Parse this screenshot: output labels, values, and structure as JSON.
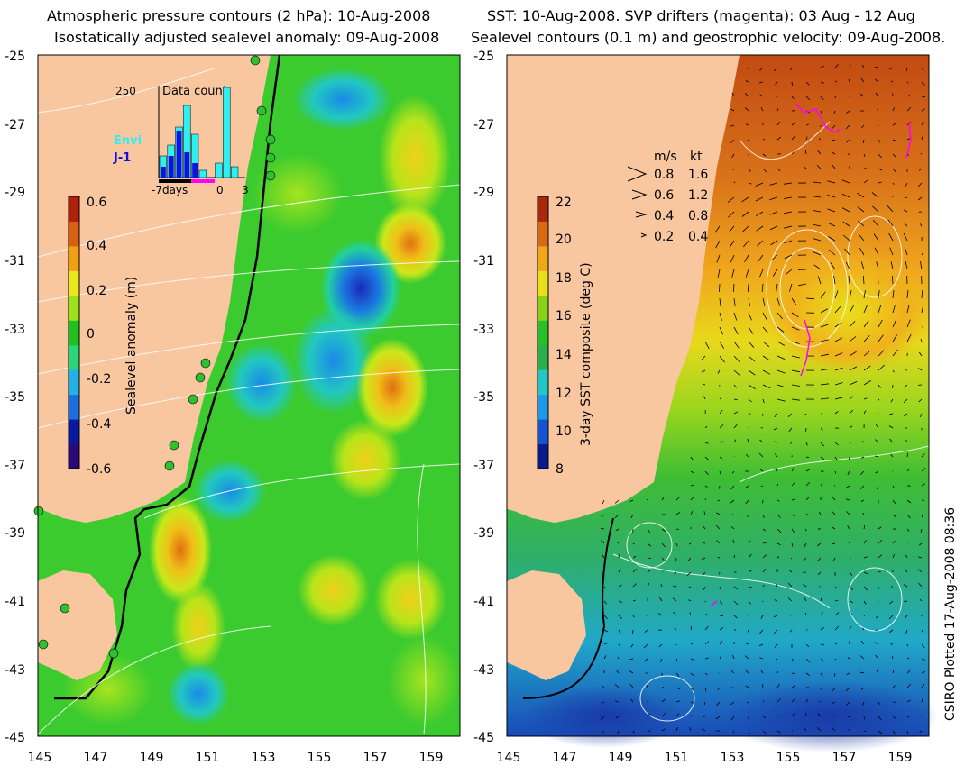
{
  "left_panel": {
    "title_line1": "Atmospheric pressure contours (2 hPa): 10-Aug-2008",
    "title_line2": "Isostatically adjusted sealevel anomaly: 09-Aug-2008",
    "y_ticks": [
      "-25",
      "-27",
      "-29",
      "-31",
      "-33",
      "-35",
      "-37",
      "-39",
      "-41",
      "-43",
      "-45"
    ],
    "x_ticks": [
      "145",
      "147",
      "149",
      "151",
      "153",
      "155",
      "157",
      "159"
    ],
    "colorbar": {
      "label": "Sealevel anomaly (m)",
      "ticks": [
        "0.6",
        "0.4",
        "0.2",
        "0",
        "-0.2",
        "-0.4",
        "-0.6"
      ],
      "colors": [
        "#2a0a7a",
        "#0a1aa0",
        "#1a6ee0",
        "#22b0e8",
        "#2ad67a",
        "#1ec21e",
        "#9be21a",
        "#e8e81a",
        "#f0a010",
        "#d86010",
        "#b0200a"
      ]
    },
    "inset": {
      "title": "Data count",
      "ymax_label": "250",
      "legend_envi": "Envi",
      "legend_j1": "J-1",
      "x_labels": [
        "-7days",
        "0",
        "3"
      ],
      "envi_color": "#2ef0f0",
      "j1_color": "#1010e0",
      "bars": [
        {
          "day": -7,
          "envi": 60,
          "j1": 30
        },
        {
          "day": -6,
          "envi": 90,
          "j1": 60
        },
        {
          "day": -5,
          "envi": 140,
          "j1": 130
        },
        {
          "day": -4,
          "envi": 200,
          "j1": 70
        },
        {
          "day": -3,
          "envi": 120,
          "j1": 40
        },
        {
          "day": -2,
          "envi": 20,
          "j1": 0
        },
        {
          "day": 0,
          "envi": 40,
          "j1": 0
        },
        {
          "day": 1,
          "envi": 250,
          "j1": 0
        },
        {
          "day": 2,
          "envi": 30,
          "j1": 0
        }
      ]
    }
  },
  "right_panel": {
    "title_line1": "SST: 10-Aug-2008. SVP drifters (magenta): 03 Aug - 12 Aug",
    "title_line2": "Sealevel contours (0.1 m) and geostrophic velocity: 09-Aug-2008.",
    "y_ticks": [
      "-25",
      "-27",
      "-29",
      "-31",
      "-33",
      "-35",
      "-37",
      "-39",
      "-41",
      "-43",
      "-45"
    ],
    "x_ticks": [
      "145",
      "147",
      "149",
      "151",
      "153",
      "155",
      "157",
      "159"
    ],
    "colorbar": {
      "label": "3-day SST composite (deg C)",
      "ticks": [
        "22",
        "20",
        "18",
        "16",
        "14",
        "12",
        "10",
        "8"
      ],
      "colors": [
        "#0a1a8a",
        "#1454d0",
        "#1a9ae8",
        "#22c8c8",
        "#2ab04a",
        "#28c02a",
        "#8ad21a",
        "#e8e01a",
        "#f0a818",
        "#d86a14",
        "#a8280e"
      ]
    },
    "velocity_legend": {
      "header_ms": "m/s",
      "header_kt": "kt",
      "rows": [
        {
          "ms": "0.8",
          "kt": "1.6"
        },
        {
          "ms": "0.6",
          "kt": "1.2"
        },
        {
          "ms": "0.4",
          "kt": "0.8"
        },
        {
          "ms": "0.2",
          "kt": "0.4"
        }
      ]
    }
  },
  "credit": "CSIRO Plotted 17-Aug-2008 08:36",
  "colors": {
    "land": "#f8c7a0",
    "ocean_green": "#2fcf2f",
    "contour": "#ffffff",
    "drifter": "#ff00ff",
    "station": "#20c020"
  }
}
